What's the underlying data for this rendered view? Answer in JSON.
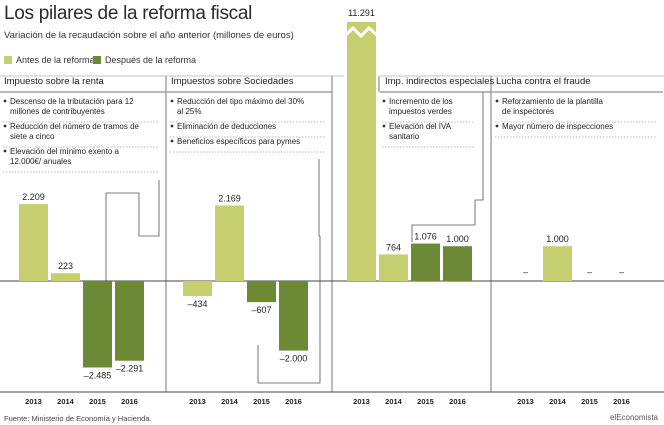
{
  "title": "Los pilares de la reforma fiscal",
  "subtitle": "Variación de la recaudación sobre el año anterior (millones de euros)",
  "legend": {
    "before": {
      "label": "Antes de la reforma",
      "color": "#c5cf6f"
    },
    "after": {
      "label": "Después de la reforma",
      "color": "#6c8a35"
    }
  },
  "source": "Fuente: Ministerio de Economía y Hacienda.",
  "brand": "elEconomista",
  "chart_data": {
    "type": "bar",
    "ylabel": "",
    "series": [
      {
        "name": "Antes de la reforma",
        "color": "#c5cf6f"
      },
      {
        "name": "Después de la reforma",
        "color": "#6c8a35"
      }
    ],
    "groups": [
      {
        "title": "Impuesto sobre la renta",
        "bullets": [
          "Descenso de la tributación para 12 millones de contribuyentes",
          "Reducción del número de tramos de siete a cinco",
          "Elevación del mínimo exento a 12.000€/ anuales"
        ],
        "bars": [
          {
            "year": "2013",
            "value": 2209,
            "label": "2.209",
            "series": "before"
          },
          {
            "year": "2014",
            "value": 223,
            "label": "223",
            "series": "before"
          },
          {
            "year": "2015",
            "value": -2485,
            "label": "–2.485",
            "series": "after"
          },
          {
            "year": "2016",
            "value": -2291,
            "label": "–2.291",
            "series": "after"
          }
        ]
      },
      {
        "title": "Impuestos sobre Sociedades",
        "bullets": [
          "Reducción del tipo máximo del 30% al 25%",
          "Eliminación de deducciones",
          "Beneficios específicos para pymes"
        ],
        "bars": [
          {
            "year": "2013",
            "value": -434,
            "label": "–434",
            "series": "before"
          },
          {
            "year": "2014",
            "value": 2169,
            "label": "2.169",
            "series": "before"
          },
          {
            "year": "2015",
            "value": -607,
            "label": "–607",
            "series": "after"
          },
          {
            "year": "2016",
            "value": -2000,
            "label": "–2.000",
            "series": "after"
          }
        ]
      },
      {
        "title": "Imp. indirectos especiales",
        "bullets": [
          "Incremento de los impuestos verdes",
          "Elevación del IVA sanitario"
        ],
        "bars": [
          {
            "year": "2013",
            "value": 11291,
            "label": "11.291",
            "series": "before",
            "broken": true
          },
          {
            "year": "2014",
            "value": 764,
            "label": "764",
            "series": "before"
          },
          {
            "year": "2015",
            "value": 1076,
            "label": "1.076",
            "series": "after"
          },
          {
            "year": "2016",
            "value": 1000,
            "label": "1.000",
            "series": "after"
          }
        ]
      },
      {
        "title": "Lucha contra el fraude",
        "bullets": [
          "Reforzamiento de la plantilla de inspectores",
          "Mayor número de inspecciones"
        ],
        "bars": [
          {
            "year": "2013",
            "value": 0,
            "label": "–",
            "series": "before"
          },
          {
            "year": "2014",
            "value": 1000,
            "label": "1.000",
            "series": "before"
          },
          {
            "year": "2015",
            "value": 0,
            "label": "–",
            "series": "after"
          },
          {
            "year": "2016",
            "value": 0,
            "label": "–",
            "series": "after"
          }
        ]
      }
    ]
  }
}
